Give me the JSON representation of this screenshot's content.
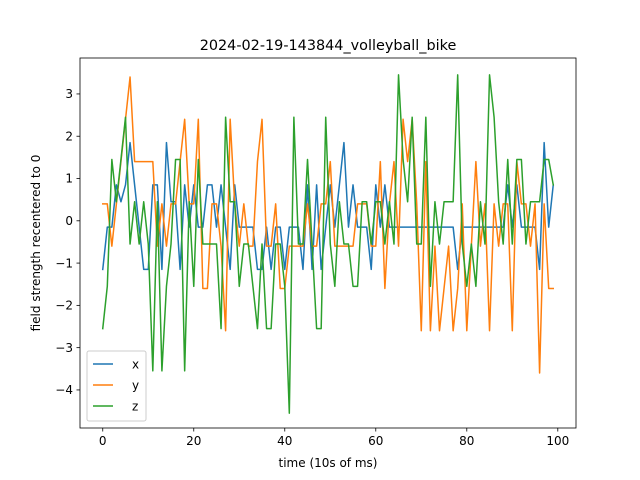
{
  "chart_data": {
    "type": "line",
    "title": "2024-02-19-143844_volleyball_bike",
    "xlabel": "time (10s of ms)",
    "ylabel": "field strength recentered to 0",
    "xlim": [
      -5,
      104
    ],
    "ylim": [
      -4.9,
      3.85
    ],
    "xticks": [
      0,
      20,
      40,
      60,
      80,
      100
    ],
    "yticks": [
      -4,
      -3,
      -2,
      -1,
      0,
      1,
      2,
      3
    ],
    "xtick_labels": [
      "0",
      "20",
      "40",
      "60",
      "80",
      "100"
    ],
    "ytick_labels": [
      "−4",
      "−3",
      "−2",
      "−1",
      "0",
      "1",
      "2",
      "3"
    ],
    "grid": false,
    "legend": "lower-left",
    "x": [
      0,
      1,
      2,
      3,
      4,
      5,
      6,
      7,
      8,
      9,
      10,
      11,
      12,
      13,
      14,
      15,
      16,
      17,
      18,
      19,
      20,
      21,
      22,
      23,
      24,
      25,
      26,
      27,
      28,
      29,
      30,
      31,
      32,
      33,
      34,
      35,
      36,
      37,
      38,
      39,
      40,
      41,
      42,
      43,
      44,
      45,
      46,
      47,
      48,
      49,
      50,
      51,
      52,
      53,
      54,
      55,
      56,
      57,
      58,
      59,
      60,
      61,
      62,
      63,
      64,
      65,
      66,
      67,
      68,
      69,
      70,
      71,
      72,
      73,
      74,
      75,
      76,
      77,
      78,
      79,
      80,
      81,
      82,
      83,
      84,
      85,
      86,
      87,
      88,
      89,
      90,
      91,
      92,
      93,
      94,
      95,
      96,
      97,
      98,
      99
    ],
    "series": [
      {
        "name": "x",
        "color": "#1f77b4",
        "values": [
          -1.15,
          -0.15,
          -0.15,
          0.85,
          0.45,
          0.85,
          1.85,
          0.85,
          -0.15,
          -1.15,
          -1.15,
          0.85,
          0.85,
          -1.15,
          1.85,
          0.45,
          0.45,
          -1.15,
          0.85,
          -0.15,
          0.85,
          -0.15,
          -0.15,
          0.85,
          0.85,
          -0.15,
          0.85,
          -0.15,
          -1.15,
          0.85,
          -0.15,
          -0.15,
          -0.15,
          -0.15,
          -1.15,
          -1.15,
          -0.15,
          -1.15,
          -0.15,
          -0.15,
          -1.15,
          -0.15,
          -0.15,
          -0.15,
          -1.15,
          0.85,
          -1.15,
          0.85,
          -1.15,
          -0.15,
          0.85,
          -0.15,
          0.85,
          1.85,
          -0.15,
          0.85,
          -0.15,
          -0.15,
          -0.15,
          -1.15,
          0.85,
          -0.15,
          0.85,
          -0.15,
          -0.15,
          -0.15,
          -0.15,
          -0.15,
          -0.15,
          -0.15,
          -0.15,
          -0.15,
          -0.15,
          -0.15,
          -0.15,
          -0.15,
          -0.15,
          -0.15,
          -1.15,
          -0.15,
          -0.15,
          -0.15,
          -0.15,
          -0.15,
          -0.15,
          -0.15,
          -0.15,
          -0.15,
          -0.15,
          0.85,
          -0.15,
          0.85,
          -0.15,
          -0.15,
          -0.15,
          -0.15,
          -1.15,
          1.85,
          -0.15,
          0.85
        ]
      },
      {
        "name": "y",
        "color": "#ff7f0e",
        "values": [
          0.4,
          0.4,
          -0.6,
          0.4,
          1.4,
          2.4,
          3.4,
          1.4,
          1.4,
          1.4,
          1.4,
          1.4,
          -0.6,
          0.4,
          -0.6,
          0.4,
          0.4,
          1.4,
          2.4,
          0.4,
          0.4,
          2.4,
          -1.6,
          -1.6,
          0.4,
          0.4,
          -0.6,
          -2.6,
          2.4,
          0.4,
          -0.6,
          0.4,
          -0.6,
          -0.6,
          1.4,
          2.4,
          -0.6,
          -0.6,
          0.4,
          -1.6,
          -1.6,
          -0.6,
          -0.6,
          -0.6,
          -0.6,
          0.4,
          -0.6,
          -0.6,
          0.4,
          0.4,
          1.4,
          -0.6,
          -0.6,
          -0.6,
          -0.6,
          -0.6,
          0.4,
          0.4,
          0.4,
          -0.6,
          -0.6,
          1.4,
          -1.6,
          0.4,
          1.4,
          -0.6,
          2.4,
          1.4,
          2.4,
          0.4,
          -2.6,
          1.4,
          -2.6,
          -0.6,
          -2.6,
          -1.6,
          -0.6,
          -2.6,
          -1.6,
          0.4,
          -2.6,
          -0.6,
          1.4,
          -0.6,
          0.4,
          -2.6,
          0.4,
          -0.6,
          0.4,
          0.4,
          -2.6,
          1.4,
          0.4,
          0.4,
          -0.6,
          0.4,
          -3.6,
          0.4,
          -1.6,
          -1.6
        ]
      },
      {
        "name": "z",
        "color": "#2ca02c",
        "values": [
          -2.55,
          -1.55,
          1.45,
          0.45,
          1.45,
          2.45,
          -0.55,
          0.45,
          -0.55,
          0.45,
          -0.55,
          -3.55,
          0.45,
          -3.55,
          -1.55,
          -0.55,
          1.45,
          1.45,
          -3.55,
          0.45,
          -1.55,
          1.45,
          -0.55,
          -0.55,
          -0.55,
          -0.55,
          -2.55,
          2.45,
          0.45,
          0.45,
          -1.55,
          -0.55,
          -0.55,
          -1.55,
          -2.55,
          -0.55,
          -2.55,
          -2.55,
          -0.55,
          -0.55,
          -1.55,
          -4.55,
          2.45,
          -0.55,
          -0.55,
          1.45,
          -0.55,
          -2.55,
          -2.55,
          2.45,
          -0.55,
          -1.55,
          0.45,
          -0.55,
          -0.55,
          -1.55,
          -1.55,
          0.45,
          0.45,
          -0.55,
          0.45,
          0.45,
          -0.55,
          0.45,
          -0.55,
          3.45,
          1.45,
          0.45,
          2.45,
          -0.55,
          -0.55,
          2.45,
          -1.55,
          0.45,
          -0.55,
          0.45,
          0.45,
          0.45,
          3.45,
          -0.55,
          -1.55,
          -0.55,
          -1.55,
          0.45,
          -0.55,
          3.45,
          2.45,
          0.45,
          -0.55,
          1.45,
          -0.55,
          1.45,
          1.45,
          -0.55,
          0.45,
          0.45,
          0.45,
          1.45,
          1.45,
          0.85
        ]
      }
    ]
  }
}
